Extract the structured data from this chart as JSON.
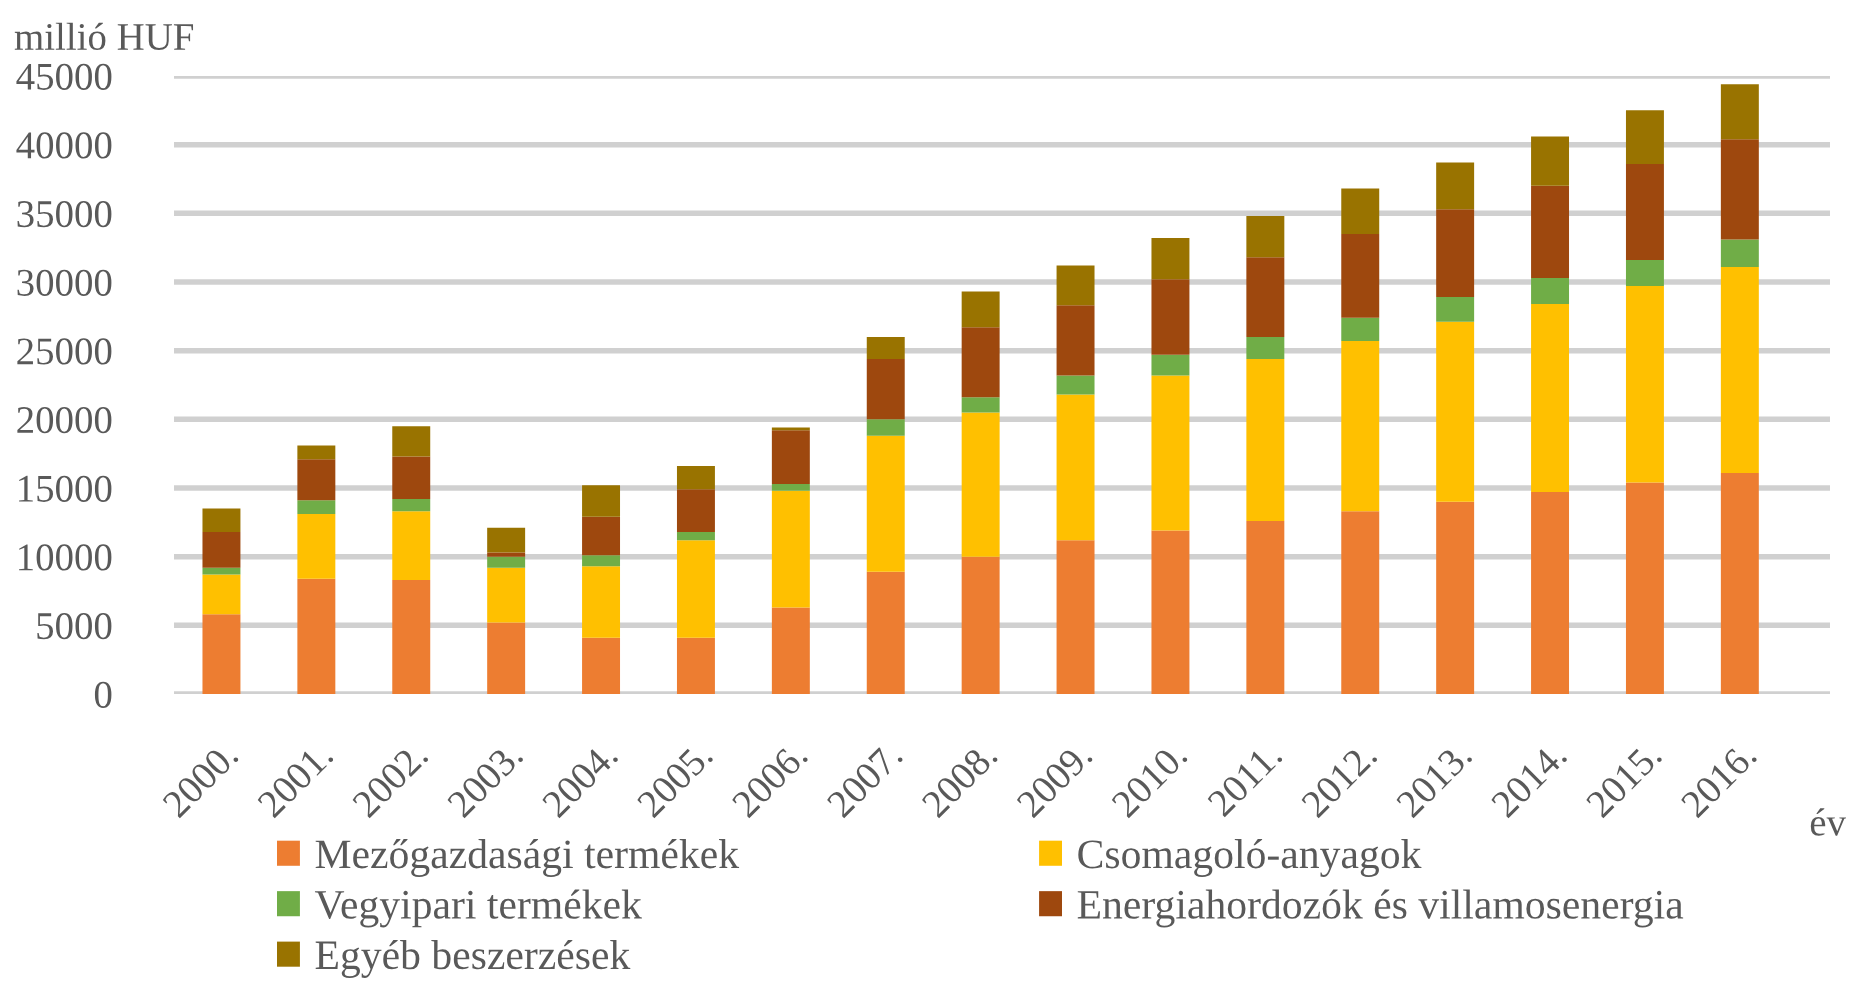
{
  "chart_data": {
    "type": "bar",
    "stacked": true,
    "ylabel": "millió HUF",
    "xlabel": "év",
    "categories": [
      "2000.",
      "2001.",
      "2002.",
      "2003.",
      "2004.",
      "2005.",
      "2006.",
      "2007.",
      "2008.",
      "2009.",
      "2010.",
      "2011.",
      "2012.",
      "2013.",
      "2014.",
      "2015.",
      "2016."
    ],
    "series": [
      {
        "name": "Mezőgazdasági termékek",
        "color": "#ed7d31",
        "values": [
          5800,
          8400,
          8300,
          5200,
          4100,
          4100,
          6300,
          8900,
          10000,
          11200,
          11900,
          12600,
          13300,
          14000,
          14700,
          15400,
          16100
        ]
      },
      {
        "name": "Csomagoló-anyagok",
        "color": "#ffc000",
        "values": [
          2900,
          4700,
          5000,
          4000,
          5200,
          7100,
          8500,
          9900,
          10500,
          10600,
          11300,
          11800,
          12400,
          13100,
          13700,
          14300,
          15000
        ]
      },
      {
        "name": "Vegyipari termékek",
        "color": "#70ad47",
        "values": [
          500,
          1000,
          900,
          800,
          800,
          600,
          500,
          1200,
          1100,
          1400,
          1500,
          1600,
          1700,
          1800,
          1900,
          1900,
          2000
        ]
      },
      {
        "name": "Energiahordozók és villamosenergia",
        "color": "#9e480e",
        "values": [
          2600,
          3000,
          3100,
          300,
          2800,
          3100,
          3900,
          4400,
          5100,
          5100,
          5500,
          5800,
          6100,
          6400,
          6700,
          7000,
          7300
        ]
      },
      {
        "name": "Egyéb beszerzések",
        "color": "#997300",
        "values": [
          1700,
          1000,
          2200,
          1800,
          2300,
          1700,
          200,
          1600,
          2600,
          2900,
          3000,
          3000,
          3300,
          3400,
          3600,
          3900,
          4000
        ]
      }
    ],
    "ylim": [
      0,
      45000
    ],
    "yticks": [
      0,
      5000,
      10000,
      15000,
      20000,
      25000,
      30000,
      35000,
      40000,
      45000
    ],
    "grid": "y",
    "legend": "bottom"
  }
}
